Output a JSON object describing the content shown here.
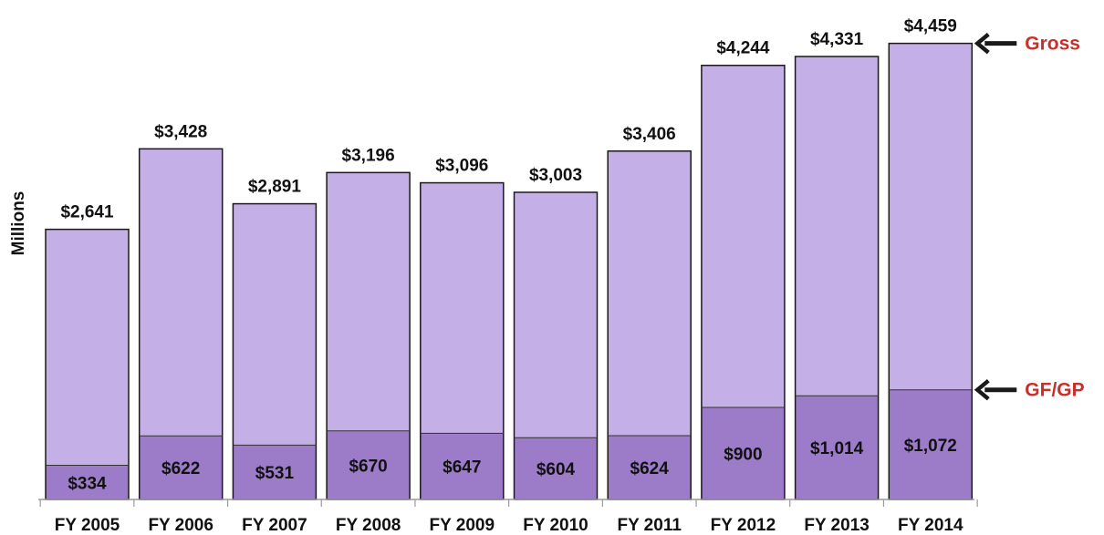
{
  "chart_data": {
    "type": "bar",
    "ylabel": "Millions",
    "categories": [
      "FY 2005",
      "FY 2006",
      "FY 2007",
      "FY 2008",
      "FY 2009",
      "FY 2010",
      "FY 2011",
      "FY 2012",
      "FY 2013",
      "FY 2014"
    ],
    "series": [
      {
        "values": [
          2641,
          3428,
          2891,
          3196,
          3096,
          3003,
          3406,
          4244,
          4331,
          4459
        ],
        "labels": [
          "$2,641",
          "$3,428",
          "$2,891",
          "$3,196",
          "$3,096",
          "$3,003",
          "$3,406",
          "$4,244",
          "$4,331",
          "$4,459"
        ],
        "color": "#c4b0e6"
      },
      {
        "values": [
          334,
          622,
          531,
          670,
          647,
          604,
          624,
          900,
          1014,
          1072
        ],
        "labels": [
          "$334",
          "$622",
          "$531",
          "$670",
          "$647",
          "$604",
          "$624",
          "$900",
          "$1,014",
          "$1,072"
        ],
        "color": "#9c7cc8"
      }
    ],
    "annotations": [
      {
        "text": "Gross",
        "points_to": "FY 2014 gross total",
        "color": "#c8302c"
      },
      {
        "text": "GF/GP",
        "points_to": "FY 2014 GF/GP value",
        "color": "#c8302c"
      }
    ],
    "ylim": [
      0,
      4500
    ],
    "grid": false,
    "legend": "none"
  }
}
